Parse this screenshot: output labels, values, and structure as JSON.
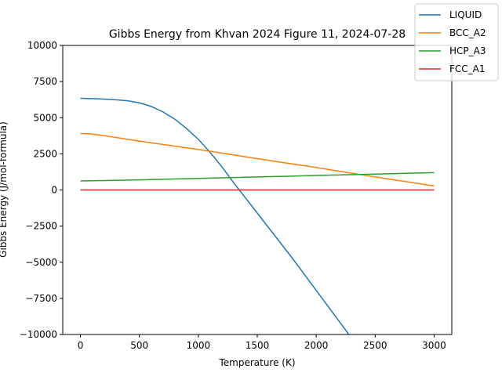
{
  "chart_data": {
    "type": "line",
    "title": "Gibbs Energy from Khvan 2024 Figure 11, 2024-07-28",
    "xlabel": "Temperature (K)",
    "ylabel": "Gibbs Energy (J/mol-formula)",
    "xlim": [
      -150,
      3150
    ],
    "ylim": [
      -10000,
      10000
    ],
    "xticks": [
      0,
      500,
      1000,
      1500,
      2000,
      2500,
      3000
    ],
    "xtick_labels": [
      "0",
      "500",
      "1000",
      "1500",
      "2000",
      "2500",
      "3000"
    ],
    "yticks": [
      -10000,
      -7500,
      -5000,
      -2500,
      0,
      2500,
      5000,
      7500,
      10000
    ],
    "ytick_labels": [
      "−10000",
      "−7500",
      "−5000",
      "−2500",
      "0",
      "2500",
      "5000",
      "7500",
      "10000"
    ],
    "grid": false,
    "legend_position": "top-right",
    "series": [
      {
        "name": "LIQUID",
        "color": "#1f77b4",
        "x": [
          0,
          100,
          200,
          300,
          400,
          500,
          600,
          700,
          800,
          900,
          1000,
          1100,
          1200,
          1300,
          1400,
          1500,
          1600,
          1700,
          1800,
          1900,
          2000,
          2100,
          2200,
          2300,
          2370
        ],
        "y": [
          6340,
          6320,
          6290,
          6240,
          6170,
          6030,
          5780,
          5400,
          4900,
          4250,
          3500,
          2600,
          1600,
          500,
          -550,
          -1600,
          -2650,
          -3700,
          -4750,
          -5850,
          -6950,
          -8050,
          -9150,
          -10250,
          -11000
        ]
      },
      {
        "name": "BCC_A2",
        "color": "#ff7f0e",
        "x": [
          0,
          80,
          200,
          500,
          1000,
          1500,
          2000,
          2500,
          3000
        ],
        "y": [
          3900,
          3880,
          3760,
          3380,
          2800,
          2170,
          1550,
          900,
          280
        ]
      },
      {
        "name": "HCP_A3",
        "color": "#2ca02c",
        "x": [
          0,
          500,
          1000,
          1500,
          2000,
          2500,
          3000
        ],
        "y": [
          620,
          700,
          800,
          900,
          1000,
          1100,
          1200
        ]
      },
      {
        "name": "FCC_A1",
        "color": "#d62728",
        "x": [
          0,
          3000
        ],
        "y": [
          0,
          0
        ]
      }
    ]
  }
}
